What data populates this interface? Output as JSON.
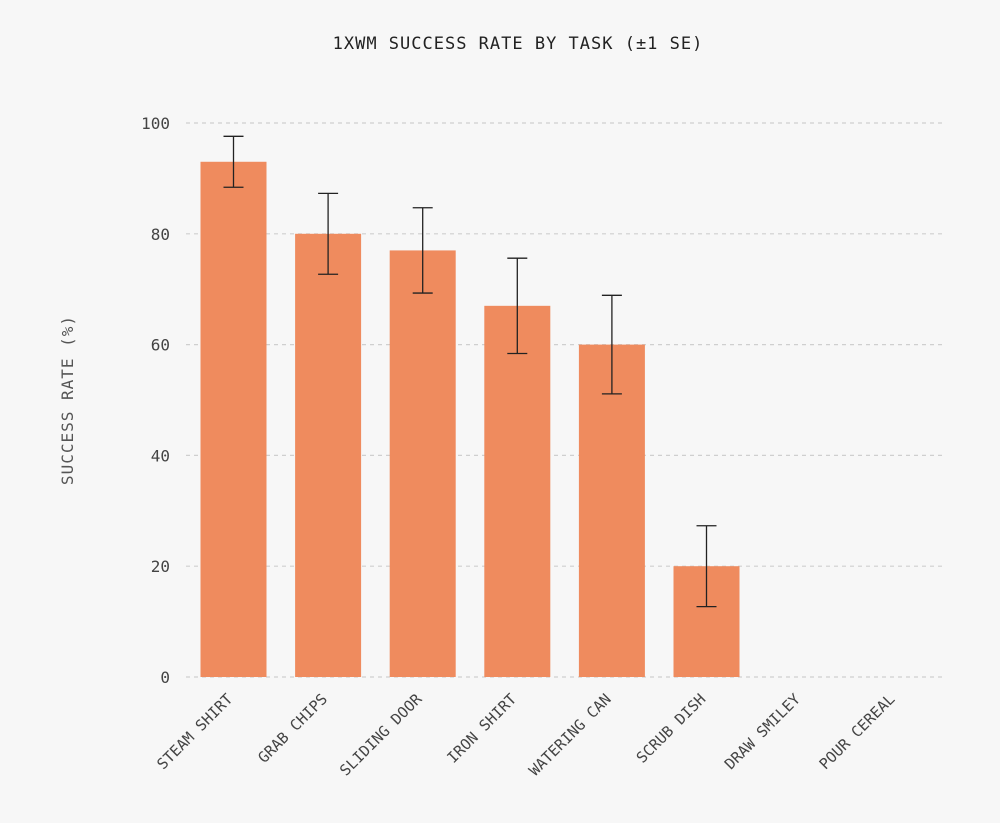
{
  "chart_data": {
    "type": "bar",
    "title": "1XWM SUCCESS RATE BY TASK (±1 SE)",
    "xlabel": "",
    "ylabel": "SUCCESS RATE (%)",
    "ylim": [
      0,
      100
    ],
    "yticks": [
      0,
      20,
      40,
      60,
      80,
      100
    ],
    "grid": true,
    "categories": [
      "STEAM SHIRT",
      "GRAB CHIPS",
      "SLIDING DOOR",
      "IRON SHIRT",
      "WATERING CAN",
      "SCRUB DISH",
      "DRAW SMILEY",
      "POUR CEREAL"
    ],
    "values": [
      93,
      80,
      77,
      67,
      60,
      20,
      0,
      0
    ],
    "error": [
      4.6,
      7.3,
      7.7,
      8.6,
      8.9,
      7.3,
      0,
      0
    ],
    "bar_color": "#ef8b5e",
    "error_color": "#222222"
  }
}
